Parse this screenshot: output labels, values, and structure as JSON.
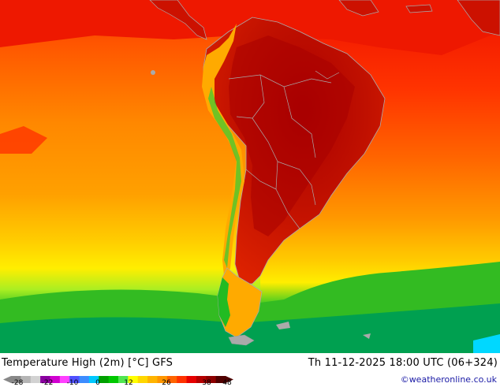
{
  "map": {
    "region": "South America",
    "colors": {
      "ocean_far": "#ff6600",
      "ocean_mid": "#ff9900",
      "ocean_cool": "#ffcc00",
      "land_hot": "#cc1100",
      "land_hottest": "#a00000",
      "north_sea": "#ee1a00",
      "south_green": "#22bb22",
      "south_deep": "#00aa55",
      "andes_green": "#33cc33",
      "border": "#aaaaaa"
    }
  },
  "footer": {
    "title": "Temperature High (2m) [°C] GFS",
    "datetime": "Th 11-12-2025 18:00 UTC (06+324)",
    "credit": "©weatheronline.co.uk"
  },
  "legend": {
    "ticks": [
      "-28",
      "-22",
      "-10",
      "0",
      "12",
      "26",
      "38",
      "48"
    ],
    "colors": [
      "#888888",
      "#b4b4b4",
      "#d2d2d2",
      "#8a00a0",
      "#d000d0",
      "#ff40ff",
      "#5050ff",
      "#3c8cff",
      "#00c8ff",
      "#00a000",
      "#00c800",
      "#50e650",
      "#ffff00",
      "#ffd700",
      "#ffb400",
      "#ff9600",
      "#ff6400",
      "#ff3200",
      "#e60000",
      "#b40000",
      "#8c0000",
      "#500000"
    ]
  }
}
